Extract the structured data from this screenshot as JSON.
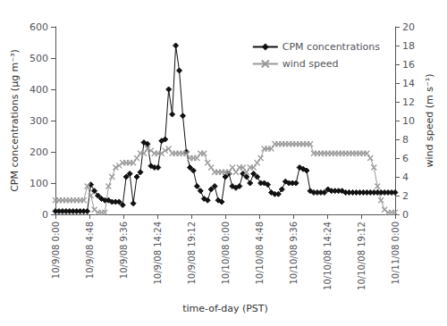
{
  "chart_data": {
    "type": "line",
    "xlabel": "time-of-day (PST)",
    "ylabel": "CPM concentrations (μg m⁻³)",
    "y2label": "wind speed (m s⁻¹)",
    "x": [
      0,
      0.5,
      1.0,
      1.5,
      2.0,
      2.5,
      3.0,
      3.5,
      4.0,
      4.5,
      5.0,
      5.5,
      6.0,
      6.5,
      7.0,
      7.5,
      8.0,
      8.5,
      9.0,
      9.5,
      10.0,
      10.5,
      11.0,
      11.5,
      12.0,
      12.5,
      13.0,
      13.5,
      14.0,
      14.5,
      15.0,
      15.5,
      16.0,
      16.5,
      17.0,
      17.5,
      18.0,
      18.5,
      19.0,
      19.5,
      20.0,
      20.5,
      21.0,
      21.5,
      22.0,
      22.5,
      23.0,
      23.5,
      24.0,
      24.5,
      25.0,
      25.5,
      26.0,
      26.5,
      27.0,
      27.5,
      28.0,
      28.5,
      29.0,
      29.5,
      30.0,
      30.5,
      31.0,
      31.5,
      32.0,
      32.5,
      33.0,
      33.5,
      34.0,
      34.5,
      35.0,
      35.5,
      36.0,
      36.5,
      37.0,
      37.5,
      38.0,
      38.5,
      39.0,
      39.5,
      40.0,
      40.5,
      41.0,
      41.5,
      42.0,
      42.5,
      43.0,
      43.5,
      44.0,
      44.5,
      45.0,
      45.5,
      46.0,
      46.5,
      47.0,
      47.5,
      48.0
    ],
    "series": [
      {
        "name": "CPM concentrations",
        "color": "#111111",
        "marker": "diamond",
        "axis": "y",
        "values": [
          10,
          10,
          10,
          10,
          10,
          10,
          10,
          10,
          10,
          10,
          95,
          75,
          60,
          50,
          45,
          45,
          40,
          40,
          40,
          30,
          120,
          130,
          35,
          120,
          135,
          230,
          225,
          155,
          150,
          150,
          235,
          240,
          400,
          320,
          540,
          460,
          315,
          200,
          150,
          140,
          90,
          75,
          50,
          45,
          80,
          90,
          45,
          40,
          120,
          130,
          90,
          85,
          90,
          130,
          120,
          100,
          130,
          120,
          100,
          100,
          95,
          70,
          65,
          65,
          80,
          105,
          100,
          100,
          100,
          150,
          145,
          140,
          75,
          70,
          70,
          70,
          70,
          80,
          75,
          75,
          75,
          75,
          70,
          70,
          70,
          70,
          70,
          70,
          70,
          70,
          70,
          70,
          70,
          70,
          70,
          70,
          70
        ]
      },
      {
        "name": "wind speed",
        "color": "#999999",
        "marker": "x",
        "axis": "y2",
        "values": [
          1.5,
          1.5,
          1.5,
          1.5,
          1.5,
          1.5,
          1.5,
          1.5,
          1.5,
          3.0,
          2.0,
          0.5,
          0.2,
          0.2,
          0.2,
          3.0,
          4.0,
          5.0,
          5.2,
          5.5,
          5.5,
          5.5,
          5.5,
          6.0,
          6.5,
          6.5,
          7.0,
          6.8,
          6.5,
          6.5,
          6.5,
          6.8,
          7.0,
          6.5,
          6.5,
          6.5,
          6.5,
          6.5,
          6.0,
          6.0,
          6.0,
          6.5,
          6.5,
          5.5,
          5.0,
          4.5,
          4.5,
          4.5,
          4.5,
          4.5,
          5.0,
          4.5,
          5.0,
          5.0,
          4.5,
          5.0,
          5.0,
          5.5,
          6.0,
          7.0,
          7.0,
          7.0,
          7.5,
          7.5,
          7.5,
          7.5,
          7.5,
          7.5,
          7.5,
          7.5,
          7.5,
          7.5,
          7.5,
          6.5,
          6.5,
          6.5,
          6.5,
          6.5,
          6.5,
          6.5,
          6.5,
          6.5,
          6.5,
          6.5,
          6.5,
          6.5,
          6.5,
          6.5,
          6.5,
          6.0,
          5.0,
          3.0,
          1.5,
          0.5,
          0.2,
          0.2,
          0.2
        ]
      }
    ],
    "xlim": [
      0,
      48
    ],
    "xticks": [
      {
        "value": 0,
        "label": "10/9/08 0:00"
      },
      {
        "value": 4.8,
        "label": "10/9/08 4:48"
      },
      {
        "value": 9.6,
        "label": "10/9/08 9:36"
      },
      {
        "value": 14.4,
        "label": "10/9/08 14:24"
      },
      {
        "value": 19.2,
        "label": "10/9/08 19:12"
      },
      {
        "value": 24.0,
        "label": "10/10/08 0:00"
      },
      {
        "value": 28.8,
        "label": "10/10/08 4:48"
      },
      {
        "value": 33.6,
        "label": "10/10/08 9:36"
      },
      {
        "value": 38.4,
        "label": "10/10/08 14:24"
      },
      {
        "value": 43.2,
        "label": "10/10/08 19:12"
      },
      {
        "value": 48.0,
        "label": "10/11/08 0:00"
      }
    ],
    "ylim": [
      0,
      600
    ],
    "yticks": [
      0,
      100,
      200,
      300,
      400,
      500,
      600
    ],
    "y2lim": [
      0,
      20
    ],
    "y2ticks": [
      0,
      2,
      4,
      6,
      8,
      10,
      12,
      14,
      16,
      18,
      20
    ],
    "grid": false,
    "legend": "upper right"
  }
}
